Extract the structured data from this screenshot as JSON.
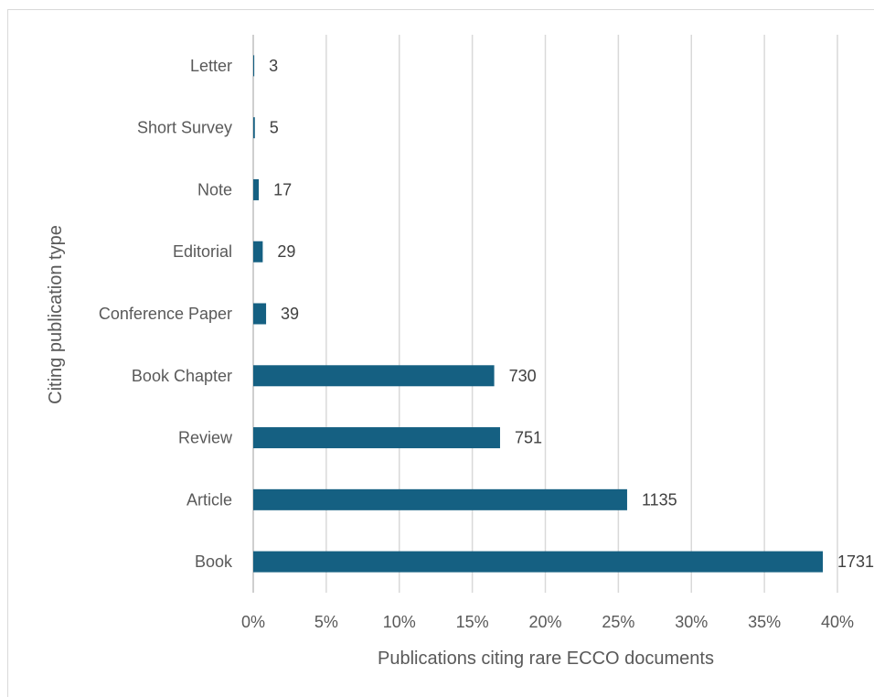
{
  "chart_data": {
    "type": "bar",
    "orientation": "horizontal",
    "title": "",
    "xlabel": "Publications citing rare ECCO documents",
    "ylabel": "Citing publication type",
    "xlim": [
      0,
      40
    ],
    "x_ticks": [
      "0%",
      "5%",
      "10%",
      "15%",
      "20%",
      "25%",
      "30%",
      "35%",
      "40%"
    ],
    "grid": true,
    "legend": "none",
    "bar_color": "#156082",
    "categories": [
      "Letter",
      "Short Survey",
      "Note",
      "Editorial",
      "Conference Paper",
      "Book Chapter",
      "Review",
      "Article",
      "Book"
    ],
    "values": [
      0.07,
      0.11,
      0.38,
      0.65,
      0.88,
      16.5,
      16.9,
      25.6,
      39.0
    ],
    "data_labels": [
      "3",
      "5",
      "17",
      "29",
      "39",
      "730",
      "751",
      "1135",
      "1731"
    ]
  }
}
